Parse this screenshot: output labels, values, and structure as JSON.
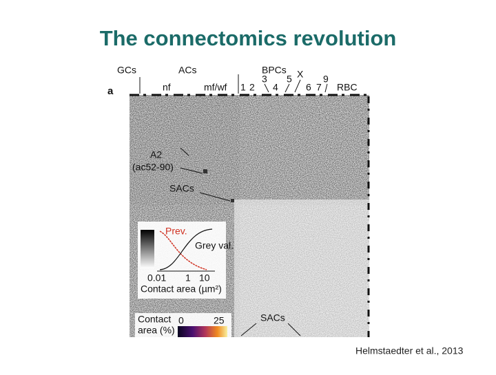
{
  "title": "The connectomics revolution",
  "figure": {
    "panel_label": "a",
    "group_labels": [
      "GCs",
      "ACs",
      "BPCs"
    ],
    "type_labels": [
      "nf",
      "mf/wf",
      "1",
      "2",
      "3",
      "4",
      "5",
      "X",
      "6",
      "7",
      "9",
      "RBC"
    ],
    "annotations": [
      "A2",
      "(ac52-90)",
      "SACs"
    ],
    "inset": {
      "curve_labels": [
        "Prev.",
        "Grey val."
      ],
      "ticks": [
        "0.01",
        "1",
        "10"
      ],
      "axis_label": "Contact area (µm²)"
    },
    "colorbar": {
      "label_lines": [
        "Contact",
        "area (%)"
      ],
      "ticks": [
        "0",
        "25"
      ]
    },
    "bottom_label": "SACs"
  },
  "citation": "Helmstaedter et al., 2013"
}
